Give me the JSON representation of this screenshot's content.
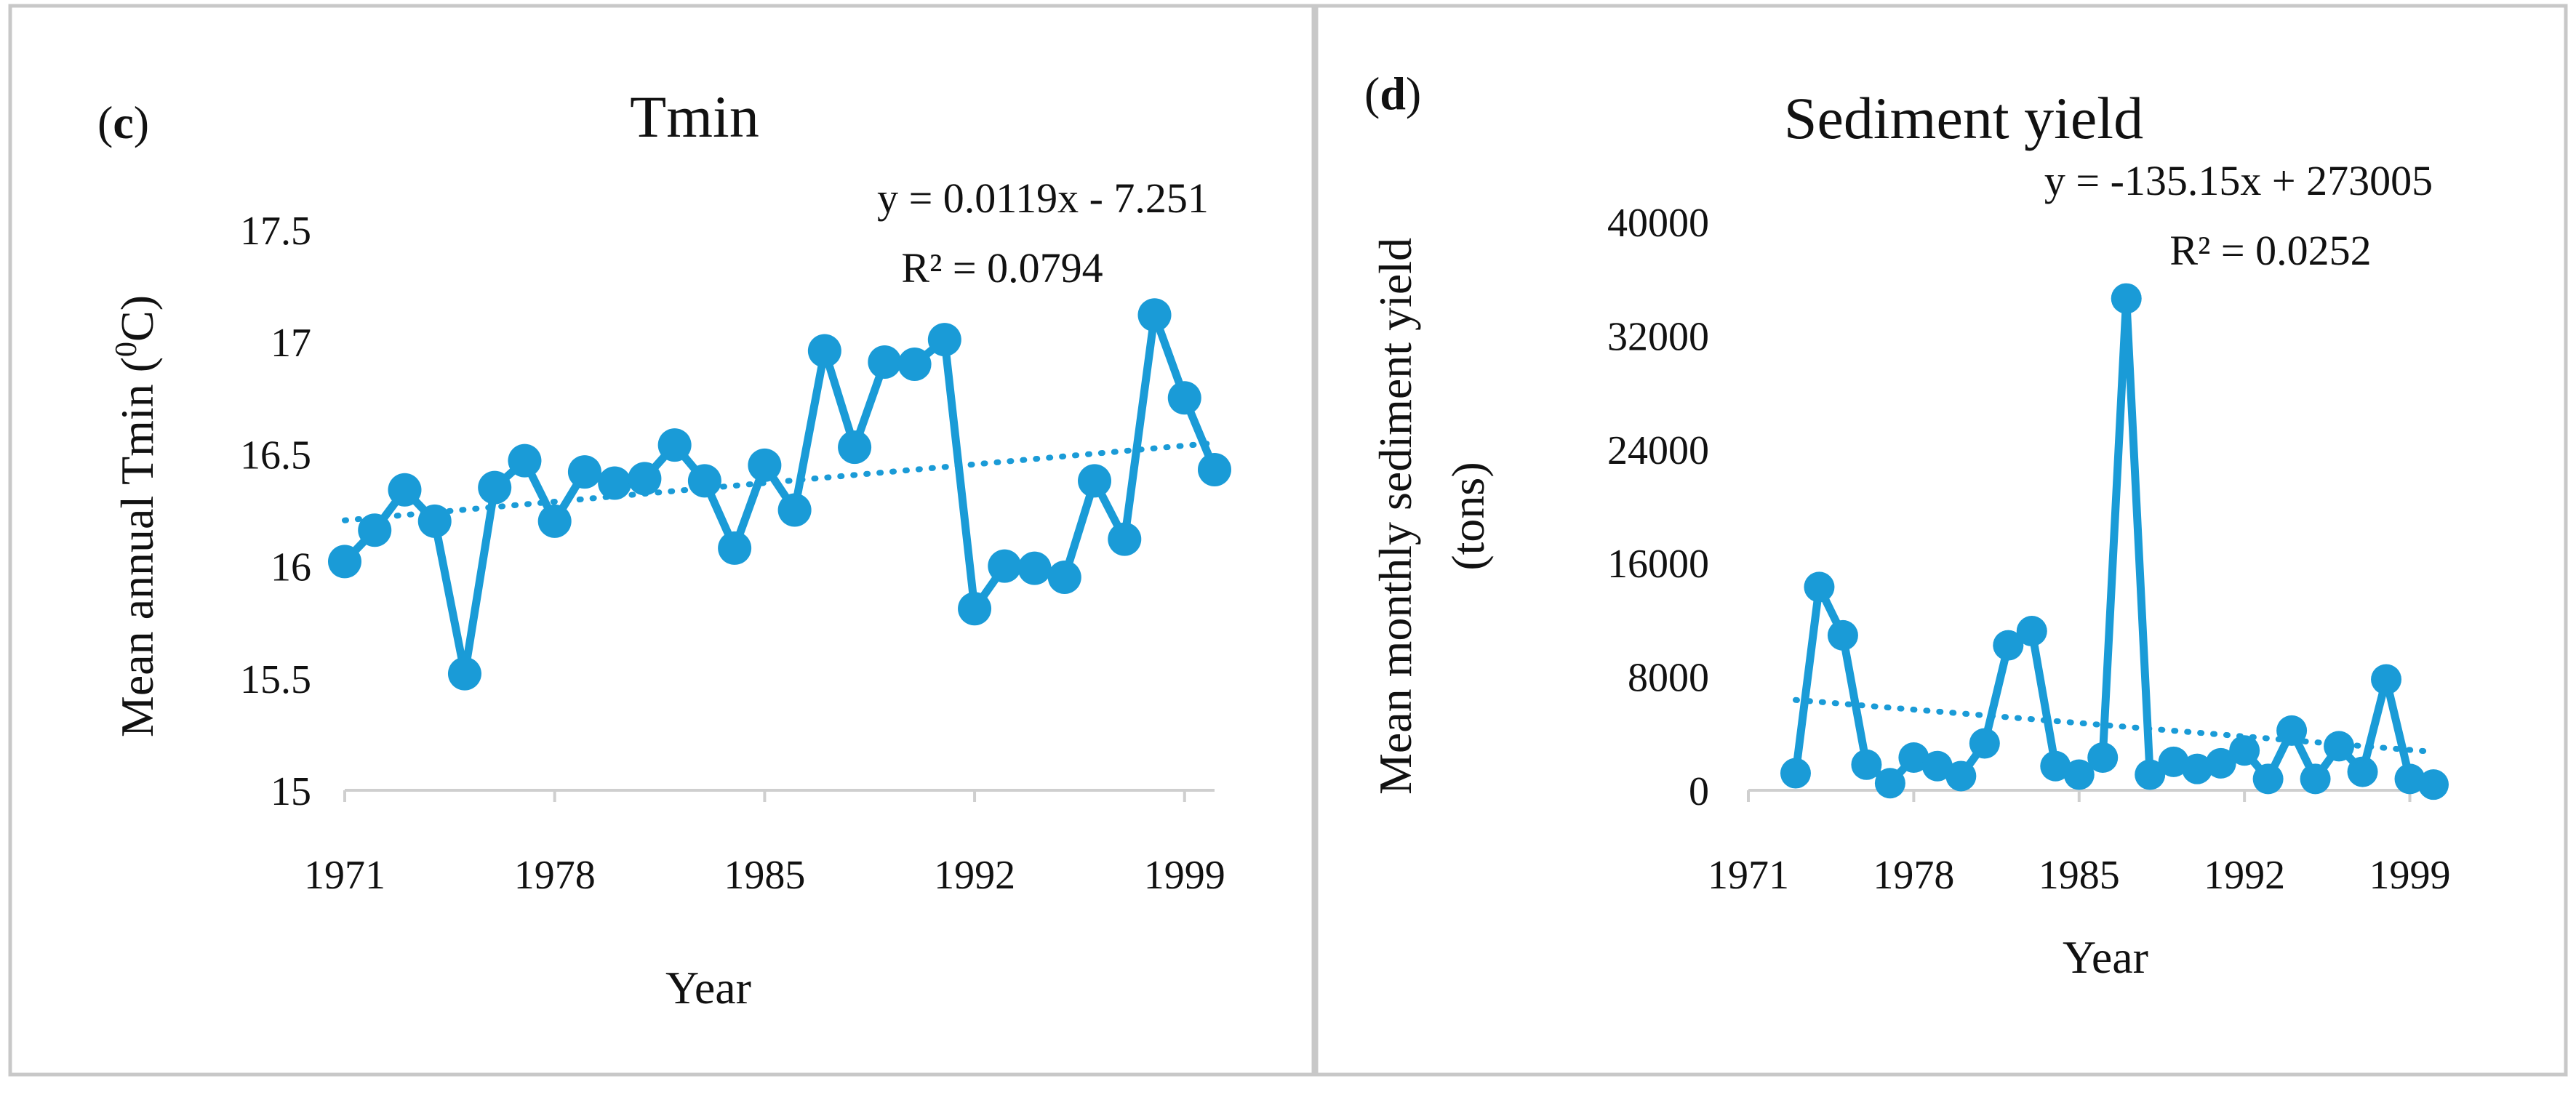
{
  "chart_data": [
    {
      "type": "line",
      "panel_label": "(c)",
      "panel_open": "(",
      "panel_letter": "c",
      "panel_close": ")",
      "title": "Tmin",
      "xlabel": "Year",
      "ylabel_prefix": "Mean annual Tmin (",
      "ylabel_sup": "0",
      "ylabel_suffix": "C)",
      "xlim": [
        1971,
        2000
      ],
      "ylim": [
        15,
        17.5
      ],
      "x_ticks": [
        1971,
        1978,
        1985,
        1992,
        1999
      ],
      "y_ticks": [
        15,
        15.5,
        16,
        16.5,
        17,
        17.5
      ],
      "y_tick_labels": [
        "15",
        "15.5",
        "16",
        "16.5",
        "17",
        "17.5"
      ],
      "series": [
        {
          "name": "Tmin",
          "x": [
            1971,
            1972,
            1973,
            1974,
            1975,
            1976,
            1977,
            1978,
            1979,
            1980,
            1981,
            1982,
            1983,
            1984,
            1985,
            1986,
            1987,
            1988,
            1989,
            1990,
            1991,
            1992,
            1993,
            1994,
            1995,
            1996,
            1997,
            1998,
            1999,
            2000
          ],
          "values": [
            16.02,
            16.16,
            16.34,
            16.2,
            15.52,
            16.35,
            16.47,
            16.2,
            16.42,
            16.37,
            16.39,
            16.54,
            16.38,
            16.08,
            16.45,
            16.25,
            16.96,
            16.53,
            16.91,
            16.9,
            17.01,
            15.81,
            16.0,
            15.99,
            15.95,
            16.38,
            16.12,
            17.12,
            16.75,
            16.43
          ]
        }
      ],
      "trendline": {
        "slope": 0.0119,
        "intercept": -7.251,
        "x_range": [
          1971,
          2000
        ]
      },
      "equation": "y = 0.0119x - 7.251",
      "r2": "R² = 0.0794",
      "colors": {
        "series": "#1a9bd7",
        "frame": "#c8c8c8"
      }
    },
    {
      "type": "line",
      "panel_label": "(d)",
      "panel_open": "(",
      "panel_letter": "d",
      "panel_close": ")",
      "title": "Sediment yield",
      "xlabel": "Year",
      "ylabel_line1": "Mean monthly sediment yield",
      "ylabel_line2": "(tons)",
      "xlim": [
        1971,
        2000
      ],
      "ylim": [
        0,
        40000
      ],
      "x_ticks": [
        1971,
        1978,
        1985,
        1992,
        1999
      ],
      "y_ticks": [
        0,
        8000,
        16000,
        24000,
        32000,
        40000
      ],
      "y_tick_labels": [
        "0",
        "8000",
        "16000",
        "24000",
        "32000",
        "40000"
      ],
      "series": [
        {
          "name": "Sediment yield",
          "x": [
            1973,
            1974,
            1975,
            1976,
            1977,
            1978,
            1979,
            1980,
            1981,
            1982,
            1983,
            1984,
            1985,
            1986,
            1987,
            1988,
            1989,
            1990,
            1991,
            1992,
            1993,
            1994,
            1995,
            1996,
            1997,
            1998,
            1999,
            2000
          ],
          "values": [
            1200,
            14300,
            10900,
            1800,
            500,
            2300,
            1700,
            1000,
            3300,
            10200,
            11200,
            1700,
            1100,
            2300,
            34600,
            1100,
            2000,
            1500,
            1900,
            2800,
            800,
            4200,
            800,
            3100,
            1300,
            7800,
            800,
            400
          ]
        }
      ],
      "trendline": {
        "slope": -135.15,
        "intercept": 273005,
        "x_range": [
          1973,
          2000
        ]
      },
      "equation": "y = -135.15x + 273005",
      "r2": "R² = 0.0252",
      "colors": {
        "series": "#1a9bd7",
        "frame": "#c8c8c8"
      }
    }
  ]
}
